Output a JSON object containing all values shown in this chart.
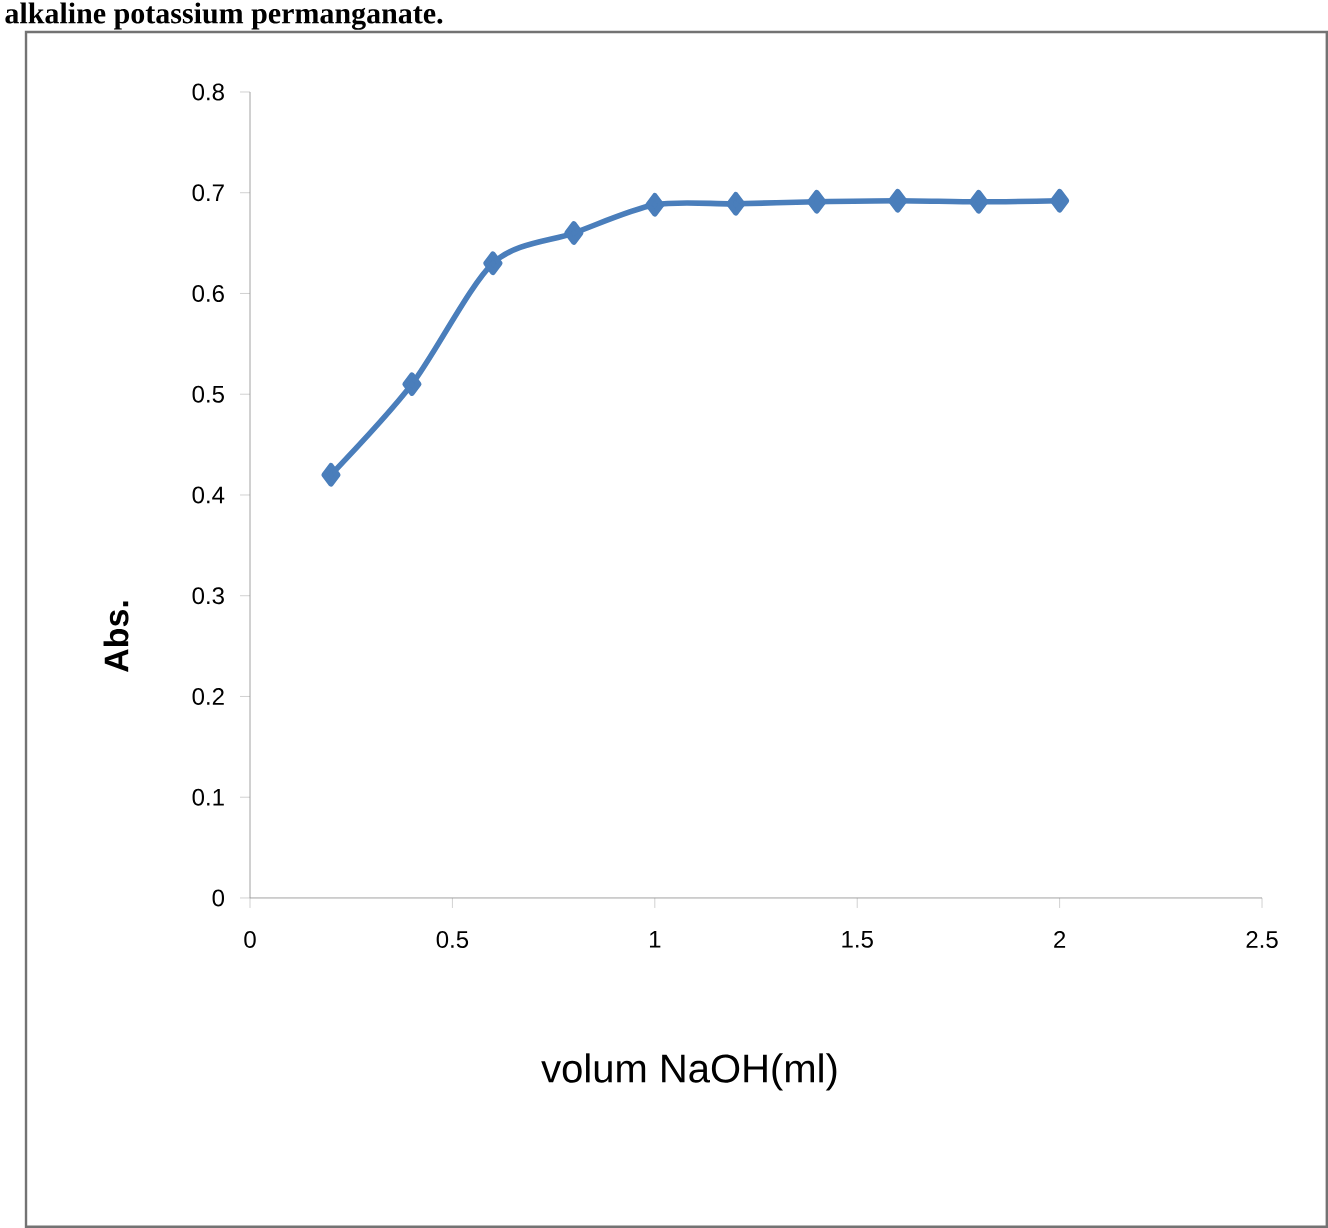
{
  "chart_data": {
    "type": "line",
    "title": "alkaline potassium permanganate.",
    "xlabel": "volum NaOH(ml)",
    "ylabel": "Abs.",
    "x": [
      0.2,
      0.4,
      0.6,
      0.8,
      1.0,
      1.2,
      1.4,
      1.6,
      1.8,
      2.0
    ],
    "series": [
      {
        "color": "#4a7ebb",
        "values": [
          0.42,
          0.51,
          0.63,
          0.66,
          0.688,
          0.689,
          0.691,
          0.692,
          0.691,
          0.692
        ]
      }
    ],
    "xlim": [
      0,
      2.5
    ],
    "xticks": [
      0,
      0.5,
      1,
      1.5,
      2,
      2.5
    ],
    "ylim": [
      0,
      0.8
    ],
    "yticks": [
      0,
      0.1,
      0.2,
      0.3,
      0.4,
      0.5,
      0.6,
      0.7,
      0.8
    ],
    "marker": "diamond",
    "line_style": "solid",
    "grid": false
  }
}
